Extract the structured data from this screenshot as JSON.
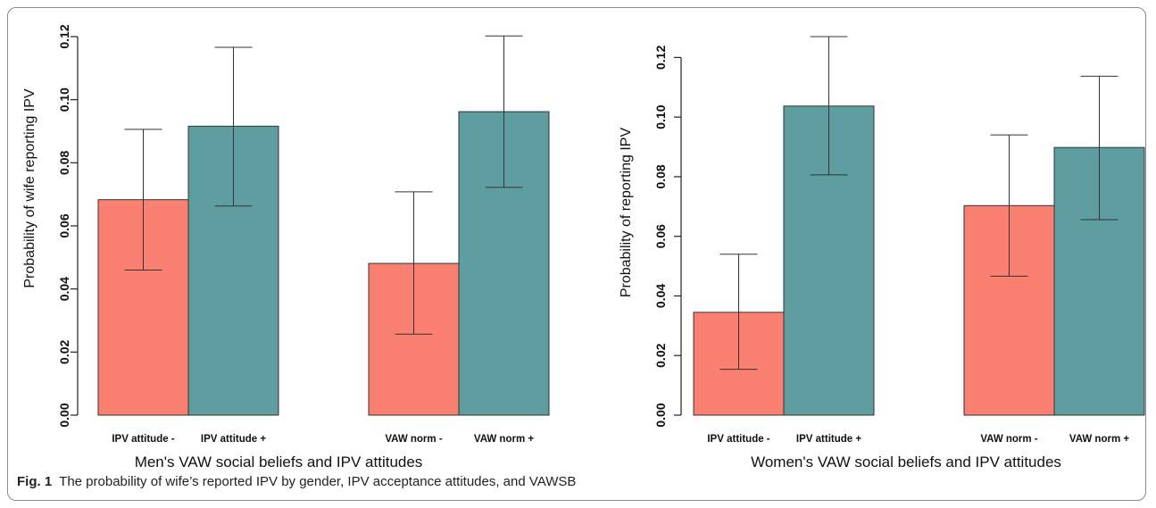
{
  "caption": {
    "label": "Fig. 1",
    "text": "The probability of wife’s reported IPV by gender, IPV acceptance attitudes, and VAWSB"
  },
  "colors": {
    "negative": "#fa8072",
    "positive": "#5f9ea0"
  },
  "chart_data": [
    {
      "type": "bar",
      "xlabel": "Men's VAW social beliefs and IPV attitudes",
      "ylabel": "Probability of wife reporting IPV",
      "ylim": [
        0,
        0.12
      ],
      "yticks": [
        "0.00",
        "0.02",
        "0.04",
        "0.06",
        "0.08",
        "0.10",
        "0.12"
      ],
      "categories": [
        "IPV attitude -",
        "IPV attitude +",
        "VAW norm -",
        "VAW norm +"
      ],
      "values": [
        0.0683,
        0.0916,
        0.0481,
        0.0962
      ],
      "error_low": [
        0.046,
        0.0663,
        0.0257,
        0.0722
      ],
      "error_high": [
        0.0906,
        0.1166,
        0.0708,
        0.1202
      ],
      "legend": "none",
      "grid": false
    },
    {
      "type": "bar",
      "xlabel": "Women's VAW social beliefs and IPV attitudes",
      "ylabel": "Probability of reporting IPV",
      "ylim": [
        0,
        0.127
      ],
      "yticks": [
        "0.00",
        "0.02",
        "0.04",
        "0.06",
        "0.08",
        "0.10",
        "0.12"
      ],
      "categories": [
        "IPV attitude -",
        "IPV attitude +",
        "VAW norm -",
        "VAW norm +"
      ],
      "values": [
        0.0345,
        0.1037,
        0.0703,
        0.0898
      ],
      "error_low": [
        0.0154,
        0.0806,
        0.0466,
        0.0656
      ],
      "error_high": [
        0.054,
        0.127,
        0.094,
        0.1137
      ],
      "legend": "none",
      "grid": false
    }
  ]
}
